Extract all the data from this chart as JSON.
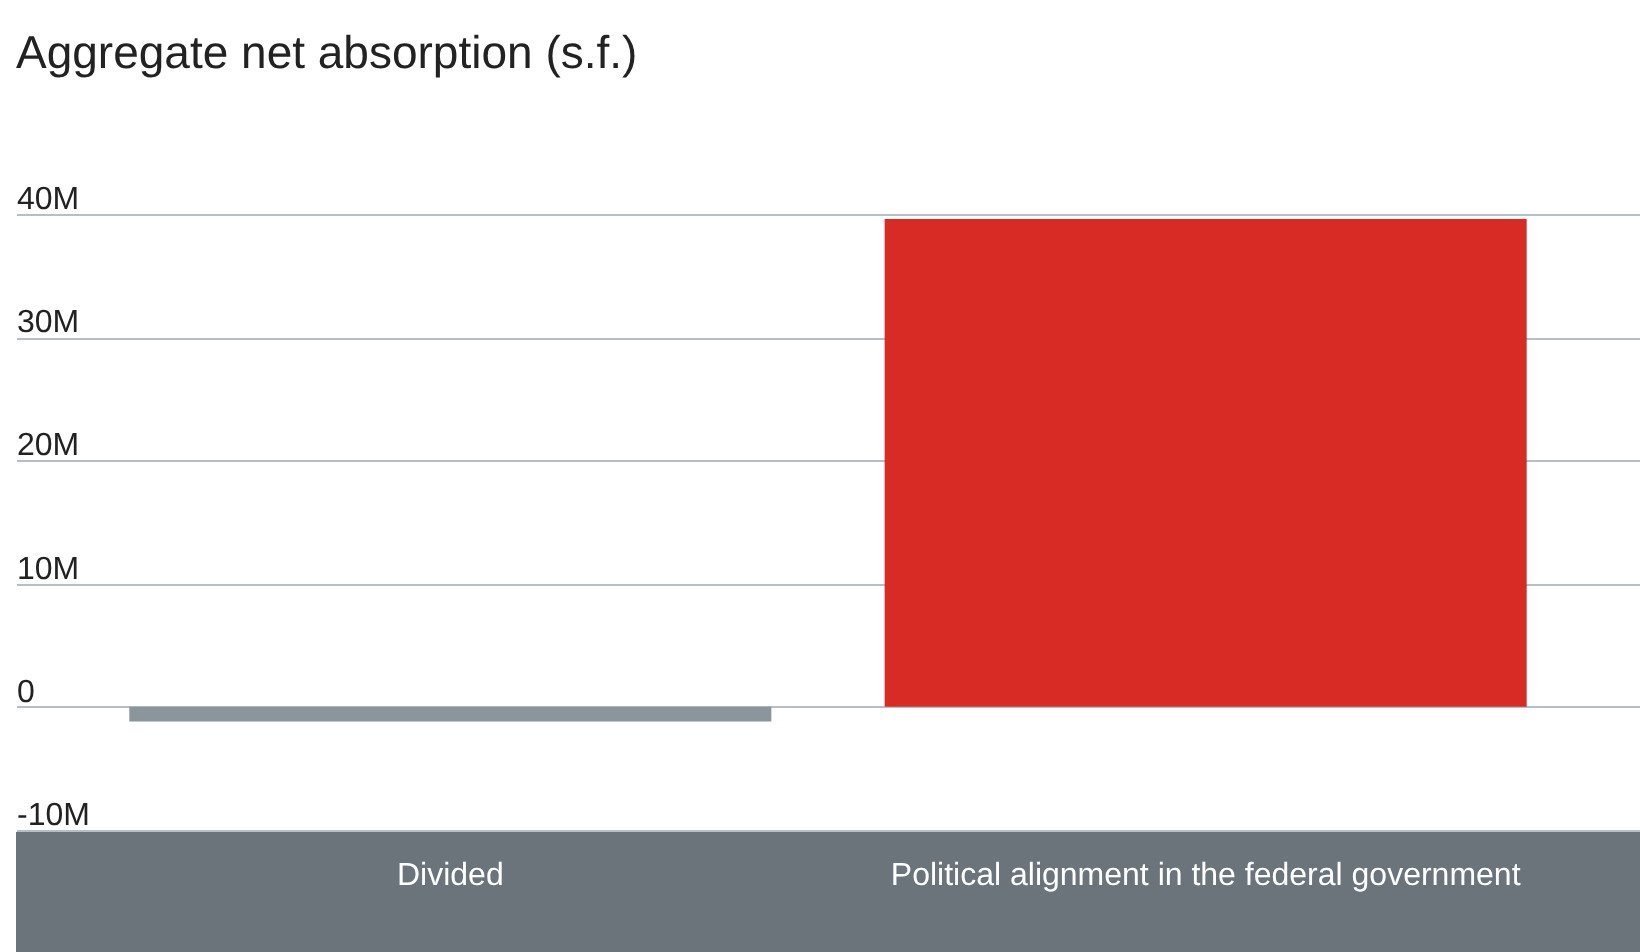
{
  "chart_data": {
    "type": "bar",
    "title": "Aggregate net absorption (s.f.)",
    "categories": [
      "Divided",
      "Political alignment in the federal government"
    ],
    "values": [
      -1200000,
      39600000
    ],
    "colors": [
      "#8a959c",
      "#d92b25"
    ],
    "ylim": [
      -10000000,
      40000000
    ],
    "yticks": [
      {
        "value": -10000000,
        "label": "-10M"
      },
      0,
      {
        "value": 10000000,
        "label": "10M"
      },
      {
        "value": 20000000,
        "label": "20M"
      },
      {
        "value": 30000000,
        "label": "30M"
      },
      {
        "value": 40000000,
        "label": "40M"
      }
    ],
    "grid": "y"
  }
}
